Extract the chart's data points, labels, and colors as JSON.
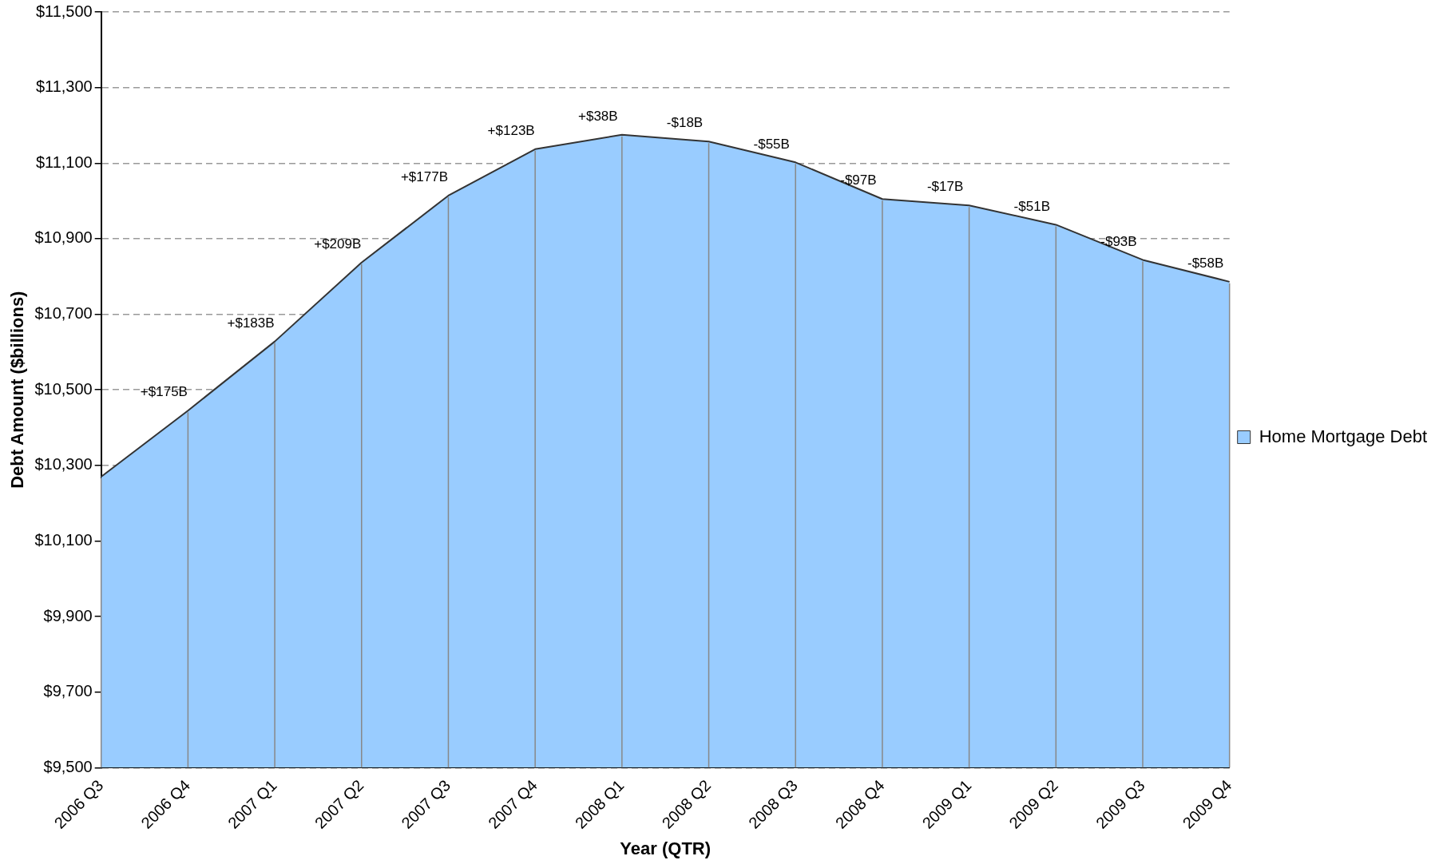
{
  "chart_data": {
    "type": "area",
    "xlabel": "Year (QTR)",
    "ylabel": "Debt Amount ($billions)",
    "categories": [
      "2006 Q3",
      "2006 Q4",
      "2007 Q1",
      "2007 Q2",
      "2007 Q3",
      "2007 Q4",
      "2008 Q1",
      "2008 Q2",
      "2008 Q3",
      "2008 Q4",
      "2009 Q1",
      "2009 Q2",
      "2009 Q3",
      "2009 Q4"
    ],
    "series": [
      {
        "name": "Home Mortgage Debt",
        "color": "#99ccff",
        "values": [
          10270,
          10445,
          10628,
          10837,
          11014,
          11137,
          11175,
          11157,
          11102,
          11005,
          10988,
          10937,
          10844,
          10786
        ]
      }
    ],
    "annotations": [
      {
        "text": "+$175B",
        "x": "2006 Q4",
        "y": 10445
      },
      {
        "text": "+$183B",
        "x": "2007 Q1",
        "y": 10628
      },
      {
        "text": "+$209B",
        "x": "2007 Q2",
        "y": 10837
      },
      {
        "text": "+$177B",
        "x": "2007 Q3",
        "y": 11014
      },
      {
        "text": "+$123B",
        "x": "2007 Q4",
        "y": 11137
      },
      {
        "text": "+$38B",
        "x": "2008 Q1",
        "y": 11175
      },
      {
        "text": "-$18B",
        "x": "2008 Q2",
        "y": 11157
      },
      {
        "text": "-$55B",
        "x": "2008 Q3",
        "y": 11102
      },
      {
        "text": "-$97B",
        "x": "2008 Q4",
        "y": 11005
      },
      {
        "text": "-$17B",
        "x": "2009 Q1",
        "y": 10988
      },
      {
        "text": "-$51B",
        "x": "2009 Q2",
        "y": 10937
      },
      {
        "text": "-$93B",
        "x": "2009 Q3",
        "y": 10844
      },
      {
        "text": "-$58B",
        "x": "2009 Q4",
        "y": 10786
      }
    ],
    "ylim": [
      9500,
      11500
    ],
    "yticks": [
      {
        "value": 9500,
        "label": "$9,500"
      },
      {
        "value": 9700,
        "label": "$9,700"
      },
      {
        "value": 9900,
        "label": "$9,900"
      },
      {
        "value": 10100,
        "label": "$10,100"
      },
      {
        "value": 10300,
        "label": "$10,300"
      },
      {
        "value": 10500,
        "label": "$10,500"
      },
      {
        "value": 10700,
        "label": "$10,700"
      },
      {
        "value": 10900,
        "label": "$10,900"
      },
      {
        "value": 11100,
        "label": "$11,100"
      },
      {
        "value": 11300,
        "label": "$11,300"
      },
      {
        "value": 11500,
        "label": "$11,500"
      }
    ],
    "grid": true,
    "legend": "right",
    "marker": "none",
    "line_style": "solid"
  }
}
